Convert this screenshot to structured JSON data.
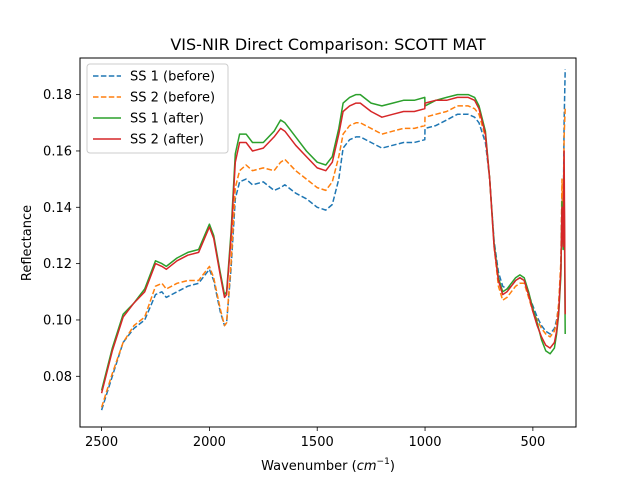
{
  "chart_data": {
    "type": "line",
    "title": "VIS-NIR Direct Comparison: SCOTT MAT",
    "xlabel": "Wavenumber (cm−1)",
    "xlabel_main": "Wavenumber (",
    "xlabel_unit": "cm",
    "xlabel_exp": "−1",
    "xlabel_close": ")",
    "ylabel": "Reflectance",
    "xlim": [
      2600,
      300
    ],
    "ylim": [
      0.062,
      0.193
    ],
    "x_reversed": true,
    "xticks": [
      2500,
      2000,
      1500,
      1000,
      500
    ],
    "xtick_labels": [
      "2500",
      "2000",
      "1500",
      "1000",
      "500"
    ],
    "yticks": [
      0.08,
      0.1,
      0.12,
      0.14,
      0.16,
      0.18
    ],
    "ytick_labels": [
      "0.08",
      "0.10",
      "0.12",
      "0.14",
      "0.16",
      "0.18"
    ],
    "grid": false,
    "legend_position": "upper-left",
    "series": [
      {
        "name": "SS 1 (before)",
        "color": "#1f77b4",
        "dash": "dashed",
        "x": [
          2500,
          2450,
          2400,
          2350,
          2300,
          2250,
          2220,
          2200,
          2150,
          2100,
          2050,
          2000,
          1980,
          1950,
          1930,
          1920,
          1900,
          1880,
          1860,
          1830,
          1800,
          1750,
          1700,
          1670,
          1650,
          1600,
          1550,
          1500,
          1460,
          1430,
          1400,
          1380,
          1350,
          1320,
          1300,
          1250,
          1200,
          1150,
          1100,
          1050,
          1001,
          1000,
          950,
          900,
          850,
          800,
          770,
          750,
          720,
          700,
          680,
          660,
          640,
          620,
          600,
          580,
          560,
          540,
          520,
          500,
          480,
          460,
          440,
          420,
          400,
          390,
          380,
          370,
          365,
          360,
          355,
          350
        ],
        "y": [
          0.068,
          0.08,
          0.092,
          0.097,
          0.1,
          0.109,
          0.11,
          0.108,
          0.11,
          0.112,
          0.113,
          0.118,
          0.114,
          0.103,
          0.098,
          0.099,
          0.118,
          0.143,
          0.149,
          0.15,
          0.148,
          0.149,
          0.146,
          0.147,
          0.148,
          0.145,
          0.143,
          0.14,
          0.139,
          0.141,
          0.15,
          0.161,
          0.164,
          0.165,
          0.165,
          0.163,
          0.161,
          0.162,
          0.163,
          0.163,
          0.164,
          0.168,
          0.169,
          0.171,
          0.173,
          0.173,
          0.172,
          0.17,
          0.163,
          0.15,
          0.128,
          0.117,
          0.112,
          0.111,
          0.112,
          0.114,
          0.115,
          0.114,
          0.109,
          0.105,
          0.101,
          0.098,
          0.096,
          0.095,
          0.097,
          0.1,
          0.105,
          0.118,
          0.145,
          0.13,
          0.17,
          0.189
        ]
      },
      {
        "name": "SS 2 (before)",
        "color": "#ff7f0e",
        "dash": "dashed",
        "x": [
          2500,
          2450,
          2400,
          2350,
          2300,
          2250,
          2220,
          2200,
          2150,
          2100,
          2050,
          2000,
          1980,
          1950,
          1930,
          1920,
          1900,
          1880,
          1860,
          1830,
          1800,
          1750,
          1700,
          1670,
          1650,
          1600,
          1550,
          1500,
          1460,
          1430,
          1400,
          1380,
          1350,
          1320,
          1300,
          1250,
          1200,
          1150,
          1100,
          1050,
          1001,
          1000,
          950,
          900,
          850,
          800,
          770,
          750,
          720,
          700,
          680,
          660,
          640,
          620,
          600,
          580,
          560,
          540,
          520,
          500,
          480,
          460,
          440,
          420,
          400,
          390,
          380,
          370,
          365,
          360,
          355,
          350
        ],
        "y": [
          0.069,
          0.081,
          0.092,
          0.098,
          0.101,
          0.112,
          0.113,
          0.111,
          0.113,
          0.114,
          0.114,
          0.119,
          0.115,
          0.104,
          0.098,
          0.099,
          0.12,
          0.147,
          0.153,
          0.155,
          0.153,
          0.154,
          0.153,
          0.156,
          0.157,
          0.153,
          0.15,
          0.147,
          0.146,
          0.149,
          0.158,
          0.166,
          0.169,
          0.17,
          0.17,
          0.168,
          0.166,
          0.167,
          0.168,
          0.168,
          0.169,
          0.172,
          0.173,
          0.174,
          0.176,
          0.176,
          0.175,
          0.173,
          0.165,
          0.15,
          0.126,
          0.112,
          0.107,
          0.108,
          0.11,
          0.112,
          0.113,
          0.113,
          0.108,
          0.103,
          0.1,
          0.097,
          0.095,
          0.094,
          0.096,
          0.099,
          0.106,
          0.121,
          0.15,
          0.13,
          0.165,
          0.175
        ]
      },
      {
        "name": "SS 1 (after)",
        "color": "#2ca02c",
        "dash": "solid",
        "x": [
          2500,
          2450,
          2400,
          2350,
          2300,
          2250,
          2220,
          2200,
          2150,
          2100,
          2050,
          2000,
          1980,
          1950,
          1930,
          1920,
          1900,
          1880,
          1860,
          1830,
          1800,
          1750,
          1700,
          1670,
          1650,
          1600,
          1550,
          1500,
          1460,
          1430,
          1400,
          1380,
          1350,
          1320,
          1300,
          1250,
          1200,
          1150,
          1100,
          1050,
          1001,
          1000,
          950,
          900,
          850,
          800,
          770,
          750,
          720,
          700,
          680,
          660,
          640,
          620,
          600,
          580,
          560,
          540,
          520,
          500,
          480,
          460,
          440,
          420,
          400,
          390,
          380,
          370,
          365,
          360,
          355,
          350
        ],
        "y": [
          0.075,
          0.09,
          0.102,
          0.106,
          0.111,
          0.121,
          0.12,
          0.119,
          0.122,
          0.124,
          0.125,
          0.134,
          0.13,
          0.117,
          0.109,
          0.11,
          0.131,
          0.159,
          0.166,
          0.166,
          0.163,
          0.163,
          0.167,
          0.171,
          0.17,
          0.165,
          0.16,
          0.156,
          0.155,
          0.158,
          0.168,
          0.177,
          0.179,
          0.18,
          0.18,
          0.177,
          0.176,
          0.177,
          0.178,
          0.178,
          0.179,
          0.176,
          0.178,
          0.179,
          0.18,
          0.18,
          0.179,
          0.176,
          0.167,
          0.15,
          0.127,
          0.115,
          0.11,
          0.111,
          0.113,
          0.115,
          0.116,
          0.115,
          0.11,
          0.104,
          0.099,
          0.093,
          0.089,
          0.088,
          0.09,
          0.095,
          0.102,
          0.116,
          0.142,
          0.125,
          0.15,
          0.095
        ]
      },
      {
        "name": "SS 2 (after)",
        "color": "#d62728",
        "dash": "solid",
        "x": [
          2500,
          2450,
          2400,
          2350,
          2300,
          2250,
          2220,
          2200,
          2150,
          2100,
          2050,
          2000,
          1980,
          1950,
          1930,
          1920,
          1900,
          1880,
          1860,
          1830,
          1800,
          1750,
          1700,
          1670,
          1650,
          1600,
          1550,
          1500,
          1460,
          1430,
          1400,
          1380,
          1350,
          1320,
          1300,
          1250,
          1200,
          1150,
          1100,
          1050,
          1001,
          1000,
          950,
          900,
          850,
          800,
          770,
          750,
          720,
          700,
          680,
          660,
          640,
          620,
          600,
          580,
          560,
          540,
          520,
          500,
          480,
          460,
          440,
          420,
          400,
          390,
          380,
          370,
          365,
          360,
          355,
          350
        ],
        "y": [
          0.074,
          0.089,
          0.101,
          0.106,
          0.11,
          0.12,
          0.119,
          0.118,
          0.121,
          0.123,
          0.124,
          0.133,
          0.129,
          0.116,
          0.108,
          0.109,
          0.129,
          0.156,
          0.163,
          0.163,
          0.16,
          0.161,
          0.165,
          0.168,
          0.167,
          0.162,
          0.158,
          0.154,
          0.153,
          0.156,
          0.166,
          0.174,
          0.176,
          0.177,
          0.177,
          0.174,
          0.172,
          0.173,
          0.174,
          0.174,
          0.175,
          0.177,
          0.178,
          0.178,
          0.179,
          0.179,
          0.178,
          0.175,
          0.166,
          0.15,
          0.126,
          0.114,
          0.109,
          0.11,
          0.112,
          0.114,
          0.115,
          0.114,
          0.109,
          0.103,
          0.098,
          0.094,
          0.091,
          0.09,
          0.092,
          0.096,
          0.103,
          0.118,
          0.14,
          0.126,
          0.16,
          0.102
        ]
      }
    ]
  }
}
